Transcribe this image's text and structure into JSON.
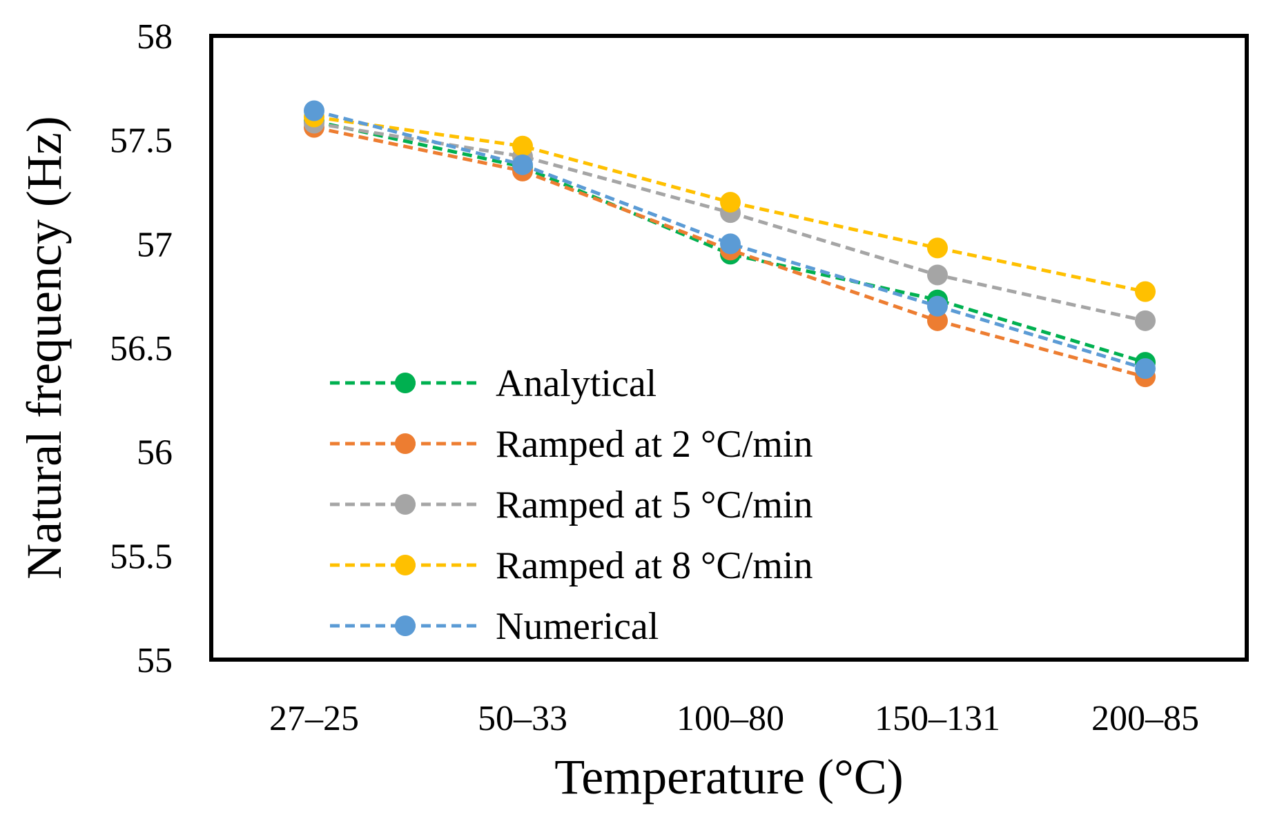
{
  "chart_data": {
    "type": "line",
    "title": "",
    "xlabel": "Temperature (°C)",
    "ylabel": "Natural frequency (Hz)",
    "categories": [
      "27–25",
      "50–33",
      "100–80",
      "150–131",
      "200–85"
    ],
    "ylim": [
      55,
      58
    ],
    "yticks": [
      "55",
      "55.5",
      "56",
      "56.5",
      "57",
      "57.5",
      "58"
    ],
    "ytick_values": [
      55,
      55.5,
      56,
      56.5,
      57,
      57.5,
      58
    ],
    "grid": false,
    "legend_position": "lower-left",
    "series": [
      {
        "name": "Analytical",
        "color": "#00b050",
        "values": [
          57.59,
          57.37,
          56.95,
          56.73,
          56.43
        ]
      },
      {
        "name": "Ramped at 2 °C/min",
        "color": "#ed7d31",
        "values": [
          57.56,
          57.35,
          56.97,
          56.63,
          56.36
        ]
      },
      {
        "name": "Ramped at 5 °C/min",
        "color": "#a5a5a5",
        "values": [
          57.58,
          57.42,
          57.15,
          56.85,
          56.63
        ]
      },
      {
        "name": "Ramped at 8 °C/min",
        "color": "#ffc000",
        "values": [
          57.61,
          57.47,
          57.2,
          56.98,
          56.77
        ]
      },
      {
        "name": "Numerical",
        "color": "#5b9bd5",
        "values": [
          57.64,
          57.38,
          57.0,
          56.7,
          56.4
        ]
      }
    ]
  }
}
